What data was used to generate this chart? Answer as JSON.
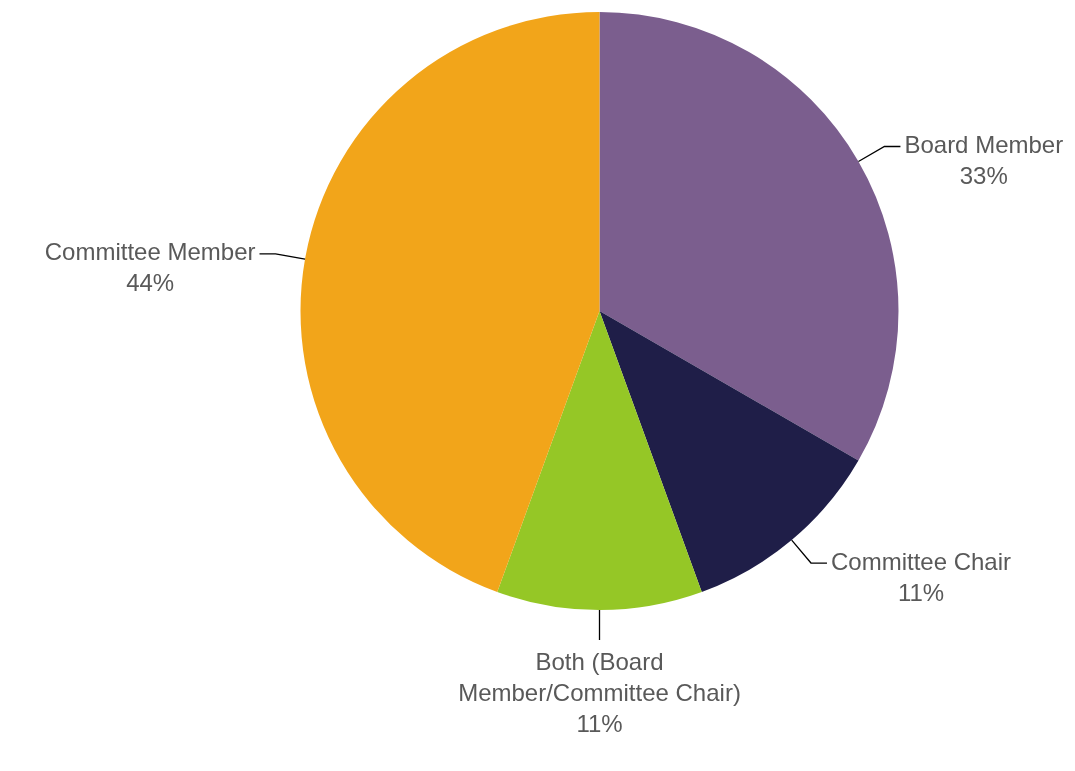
{
  "chart_data": {
    "type": "pie",
    "categories": [
      "Board Member",
      "Committee Chair",
      "Both (Board Member/Committee Chair)",
      "Committee Member"
    ],
    "values": [
      33,
      11,
      11,
      44
    ],
    "value_labels": [
      "33%",
      "11%",
      "11%",
      "44%"
    ],
    "colors": [
      "#7b5e8e",
      "#1f1e48",
      "#95c726",
      "#f2a51a"
    ],
    "legend": false
  }
}
